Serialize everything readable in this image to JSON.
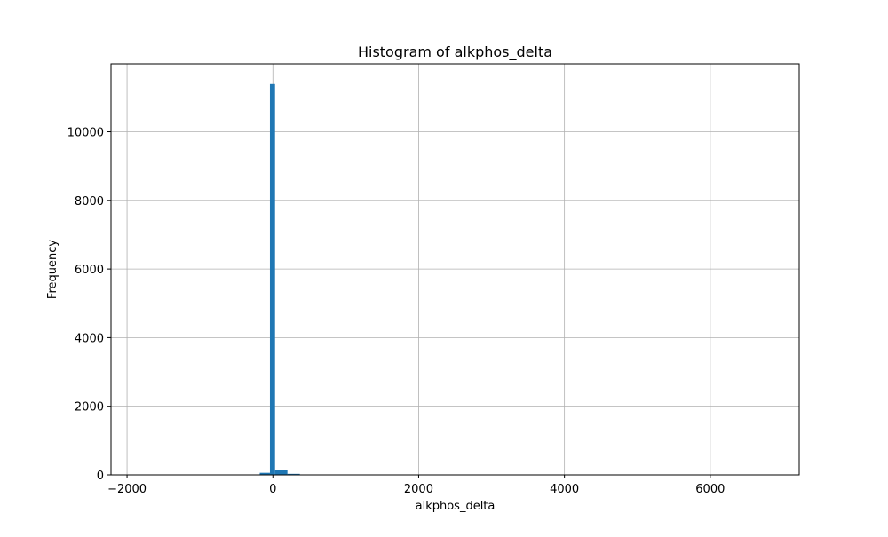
{
  "chart_data": {
    "type": "bar",
    "title": "Histogram of alkphos_delta",
    "xlabel": "alkphos_delta",
    "ylabel": "Frequency",
    "xlim": [
      -2220,
      7220
    ],
    "ylim": [
      0,
      11980
    ],
    "x_ticks": [
      -2000,
      0,
      2000,
      4000,
      6000
    ],
    "y_ticks": [
      0,
      2000,
      4000,
      6000,
      8000,
      10000
    ],
    "grid": true,
    "bar_color": "#1f77b4",
    "bins": [
      {
        "x0": -180,
        "x1": -40,
        "count": 60
      },
      {
        "x0": -40,
        "x1": 30,
        "count": 11390
      },
      {
        "x0": 30,
        "x1": 200,
        "count": 140
      },
      {
        "x0": 200,
        "x1": 370,
        "count": 30
      },
      {
        "x0": 370,
        "x1": 540,
        "count": 5
      }
    ]
  }
}
